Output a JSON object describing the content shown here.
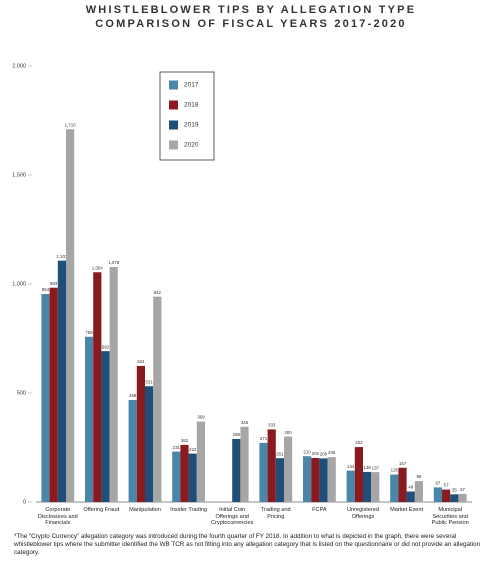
{
  "chart_data": {
    "type": "bar",
    "title": "WHISTLEBLOWER TIPS BY ALLEGATION TYPE",
    "subtitle": "COMPARISON OF FISCAL YEARS 2017-2020",
    "categories": [
      "Corporate Disclosures and Financials",
      "Offering Fraud",
      "Manipulation",
      "Insider Trading",
      "Initial Coin Offerings and Cryptocurrencies",
      "Trading and Pricing",
      "FCPA",
      "Unregistered Offerings",
      "Market Event",
      "Municipal Securities and Public Pension"
    ],
    "series": [
      {
        "name": "2017",
        "color": "#4a86a8",
        "values": [
          954,
          758,
          468,
          231,
          null,
          271,
          210,
          144,
          126,
          67
        ],
        "value_labels": [
          "954",
          "758",
          "468",
          "231",
          null,
          "271",
          "210",
          "144",
          "126",
          "67"
        ]
      },
      {
        "name": "2018",
        "color": "#8b1a1f",
        "values": [
          983,
          1054,
          624,
          262,
          null,
          333,
          202,
          252,
          157,
          57
        ],
        "value_labels": [
          "983",
          "1,054",
          "624",
          "262",
          null,
          "333",
          "202",
          "252",
          "157",
          "57"
        ]
      },
      {
        "name": "2019",
        "color": "#1f4e79",
        "values": [
          1107,
          692,
          531,
          222,
          289,
          201,
          200,
          138,
          48,
          35
        ],
        "value_labels": [
          "1,107",
          "692",
          "531",
          "222",
          "289",
          "201",
          "200",
          "138",
          "48",
          "35"
        ]
      },
      {
        "name": "2020",
        "color": "#a6a6a6",
        "values": [
          1710,
          1078,
          942,
          369,
          345,
          300,
          206,
          137,
          96,
          37
        ],
        "value_labels": [
          "1,710",
          "1,078",
          "942",
          "369",
          "345",
          "300",
          "206",
          "137",
          "96",
          "37"
        ]
      }
    ],
    "ylim": [
      0,
      2000
    ],
    "yticks": [
      {
        "value": 0,
        "label": "0"
      },
      {
        "value": 500,
        "label": "500"
      },
      {
        "value": 1000,
        "label": "1,000"
      },
      {
        "value": 1500,
        "label": "1,500"
      },
      {
        "value": 2000,
        "label": "2,000"
      }
    ],
    "footnote": "*The “Crypto Currency” allegation category was introduced during the fourth quarter of FY 2018. In addition to what is depicted in the graph, there were several whistleblower tips where the submitter identified the WB TCR as not fitting into any allegation category that is listed on the questionnaire or did not provide an allegation category."
  }
}
